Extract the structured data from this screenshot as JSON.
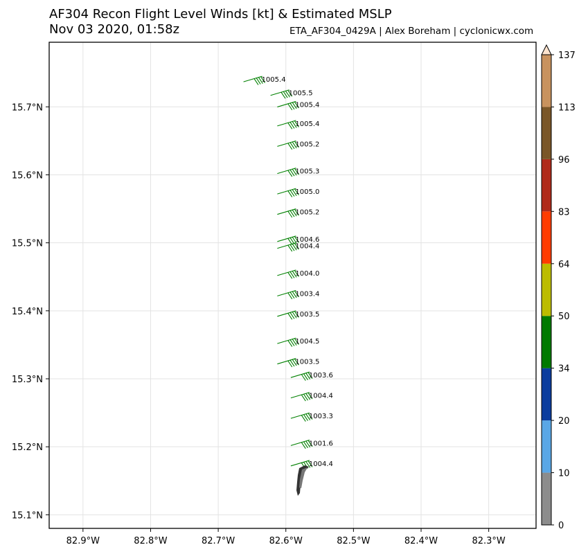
{
  "title": "AF304 Recon Flight Level Winds [kt] & Estimated MSLP",
  "subtitle": "Nov 03 2020, 01:58z",
  "credit": "ETA_AF304_0429A | Alex Boreham | cyclonicwx.com",
  "chart_data": {
    "type": "scatter",
    "x_ticks": [
      {
        "value": -82.9,
        "label": "82.9°W"
      },
      {
        "value": -82.8,
        "label": "82.8°W"
      },
      {
        "value": -82.7,
        "label": "82.7°W"
      },
      {
        "value": -82.6,
        "label": "82.6°W"
      },
      {
        "value": -82.5,
        "label": "82.5°W"
      },
      {
        "value": -82.4,
        "label": "82.4°W"
      },
      {
        "value": -82.3,
        "label": "82.3°W"
      }
    ],
    "y_ticks": [
      {
        "value": 15.1,
        "label": "15.1°N"
      },
      {
        "value": 15.2,
        "label": "15.2°N"
      },
      {
        "value": 15.3,
        "label": "15.3°N"
      },
      {
        "value": 15.4,
        "label": "15.4°N"
      },
      {
        "value": 15.5,
        "label": "15.5°N"
      },
      {
        "value": 15.6,
        "label": "15.6°N"
      },
      {
        "value": 15.7,
        "label": "15.7°N"
      }
    ],
    "xlim": [
      -82.95,
      -82.23
    ],
    "ylim": [
      15.08,
      15.795
    ],
    "grid": true,
    "colorbar": {
      "position": "right",
      "ticks": [
        "0",
        "10",
        "20",
        "34",
        "50",
        "64",
        "83",
        "96",
        "113",
        "137"
      ],
      "colors": [
        "#8c8c8c",
        "#5aa7e6",
        "#0b3d9e",
        "#007a00",
        "#bcbc00",
        "#ff3c00",
        "#b02a1a",
        "#7a5628",
        "#c8925e",
        "#fce2cc"
      ]
    },
    "observations": [
      {
        "lon": -82.635,
        "lat": 15.745,
        "mslp": "1005.4",
        "wind_color": "#008000"
      },
      {
        "lon": -82.595,
        "lat": 15.725,
        "mslp": "1005.5",
        "wind_color": "#008000"
      },
      {
        "lon": -82.585,
        "lat": 15.708,
        "mslp": "1005.4",
        "wind_color": "#008000"
      },
      {
        "lon": -82.585,
        "lat": 15.68,
        "mslp": "1005.4",
        "wind_color": "#008000"
      },
      {
        "lon": -82.585,
        "lat": 15.65,
        "mslp": "1005.2",
        "wind_color": "#008000"
      },
      {
        "lon": -82.585,
        "lat": 15.61,
        "mslp": "1005.3",
        "wind_color": "#008000"
      },
      {
        "lon": -82.585,
        "lat": 15.58,
        "mslp": "1005.0",
        "wind_color": "#008000"
      },
      {
        "lon": -82.585,
        "lat": 15.55,
        "mslp": "1005.2",
        "wind_color": "#008000"
      },
      {
        "lon": -82.585,
        "lat": 15.51,
        "mslp": "1004.6",
        "wind_color": "#008000"
      },
      {
        "lon": -82.585,
        "lat": 15.5,
        "mslp": "1004.4",
        "wind_color": "#008000"
      },
      {
        "lon": -82.585,
        "lat": 15.46,
        "mslp": "1004.0",
        "wind_color": "#008000"
      },
      {
        "lon": -82.585,
        "lat": 15.43,
        "mslp": "1003.4",
        "wind_color": "#008000"
      },
      {
        "lon": -82.585,
        "lat": 15.4,
        "mslp": "1003.5",
        "wind_color": "#008000"
      },
      {
        "lon": -82.585,
        "lat": 15.36,
        "mslp": "1004.5",
        "wind_color": "#008000"
      },
      {
        "lon": -82.585,
        "lat": 15.33,
        "mslp": "1003.5",
        "wind_color": "#008000"
      },
      {
        "lon": -82.565,
        "lat": 15.31,
        "mslp": "1003.6",
        "wind_color": "#008000"
      },
      {
        "lon": -82.565,
        "lat": 15.28,
        "mslp": "1004.4",
        "wind_color": "#008000"
      },
      {
        "lon": -82.565,
        "lat": 15.25,
        "mslp": "1003.3",
        "wind_color": "#008000"
      },
      {
        "lon": -82.565,
        "lat": 15.21,
        "mslp": "1001.6",
        "wind_color": "#008000"
      },
      {
        "lon": -82.565,
        "lat": 15.18,
        "mslp": "1004.4",
        "wind_color": "#008000"
      }
    ]
  }
}
